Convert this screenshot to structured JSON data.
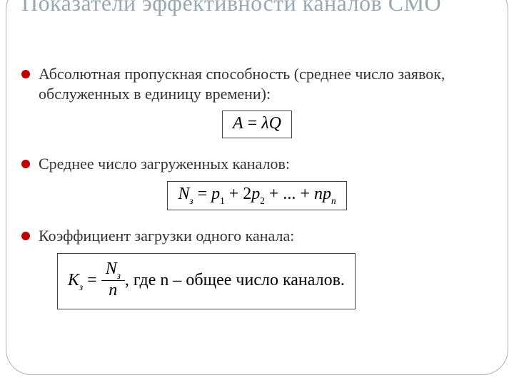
{
  "colors": {
    "title": "#9aa7b0",
    "body_text": "#333333",
    "bullet": "#c00000",
    "formula_border": "#404040",
    "frame_border": "#b0b0b0",
    "background": "#ffffff"
  },
  "typography": {
    "title_fontsize_pt": 32,
    "body_fontsize_pt": 22,
    "formula_fontsize_pt": 24,
    "font_family": "Times New Roman"
  },
  "title": "Показатели эффективности каналов СМО",
  "bullets": [
    {
      "text": "Абсолютная пропускная способность (среднее число заявок, обслуженных в единицу времени):",
      "formula_id": "f1"
    },
    {
      "text": "Среднее число загруженных каналов:",
      "formula_id": "f2"
    },
    {
      "text": "Коэффициент загрузки одного канала:",
      "formula_id": "f3"
    }
  ],
  "formulas": {
    "f1": {
      "plain": "A = λQ",
      "parts": {
        "lhs": "A",
        "eq": " = ",
        "rhs1": "λ",
        "rhs2": "Q"
      }
    },
    "f2": {
      "plain": "N_з = p_1 + 2p_2 + ... + n p_n",
      "parts": {
        "lhs_sym": "N",
        "lhs_sub": "з",
        "eq": " = ",
        "t1": "p",
        "t1sub": "1",
        "plus1": " + 2",
        "t2": "p",
        "t2sub": "2",
        "plusdots": " + ... + ",
        "n": "n",
        "tn": "p",
        "tnsub": "n"
      }
    },
    "f3": {
      "plain": "K_з = N_з / n , где n — общее число каналов.",
      "parts": {
        "lhs_sym": "K",
        "lhs_sub": "з",
        "eq": " = ",
        "num_sym": "N",
        "num_sub": "з",
        "den": "n",
        "tail": ", где n – общее число каналов."
      }
    }
  }
}
